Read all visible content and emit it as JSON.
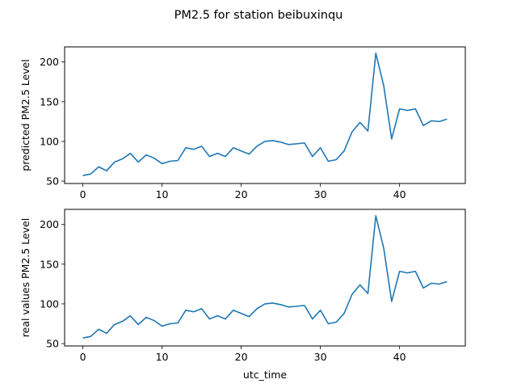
{
  "figure": {
    "title": "PM2.5 for station beibuxinqu"
  },
  "chart_data": [
    {
      "type": "line",
      "title": "",
      "xlabel": "",
      "ylabel": "predicted PM2.5 Level",
      "xlim": [
        -2.3,
        48.3
      ],
      "ylim": [
        47,
        219
      ],
      "xticks": [
        0,
        10,
        20,
        30,
        40
      ],
      "yticks": [
        50,
        100,
        150,
        200
      ],
      "grid": false,
      "color": "#1f77b4",
      "x": [
        0,
        1,
        2,
        3,
        4,
        5,
        6,
        7,
        8,
        9,
        10,
        11,
        12,
        13,
        14,
        15,
        16,
        17,
        18,
        19,
        20,
        21,
        22,
        23,
        24,
        25,
        26,
        27,
        28,
        29,
        30,
        31,
        32,
        33,
        34,
        35,
        36,
        37,
        38,
        39,
        40,
        41,
        42,
        43,
        44,
        45,
        46
      ],
      "values": [
        57,
        59,
        68,
        63,
        74,
        78,
        85,
        74,
        83,
        79,
        72,
        75,
        76,
        92,
        90,
        94,
        81,
        85,
        81,
        92,
        88,
        84,
        94,
        100,
        101,
        99,
        96,
        97,
        98,
        81,
        92,
        75,
        77,
        88,
        112,
        124,
        113,
        211,
        170,
        103,
        141,
        139,
        141,
        120,
        126,
        125,
        128
      ]
    },
    {
      "type": "line",
      "title": "",
      "xlabel": "utc_time",
      "ylabel": "real values PM2.5 Level",
      "xlim": [
        -2.3,
        48.3
      ],
      "ylim": [
        47,
        219
      ],
      "xticks": [
        0,
        10,
        20,
        30,
        40
      ],
      "yticks": [
        50,
        100,
        150,
        200
      ],
      "grid": false,
      "color": "#1f77b4",
      "x": [
        0,
        1,
        2,
        3,
        4,
        5,
        6,
        7,
        8,
        9,
        10,
        11,
        12,
        13,
        14,
        15,
        16,
        17,
        18,
        19,
        20,
        21,
        22,
        23,
        24,
        25,
        26,
        27,
        28,
        29,
        30,
        31,
        32,
        33,
        34,
        35,
        36,
        37,
        38,
        39,
        40,
        41,
        42,
        43,
        44,
        45,
        46
      ],
      "values": [
        57,
        59,
        68,
        63,
        74,
        78,
        85,
        74,
        83,
        79,
        72,
        75,
        76,
        92,
        90,
        94,
        81,
        85,
        81,
        92,
        88,
        84,
        94,
        100,
        101,
        99,
        96,
        97,
        98,
        81,
        92,
        75,
        77,
        88,
        112,
        124,
        113,
        211,
        170,
        103,
        141,
        139,
        141,
        120,
        126,
        125,
        128
      ]
    }
  ]
}
